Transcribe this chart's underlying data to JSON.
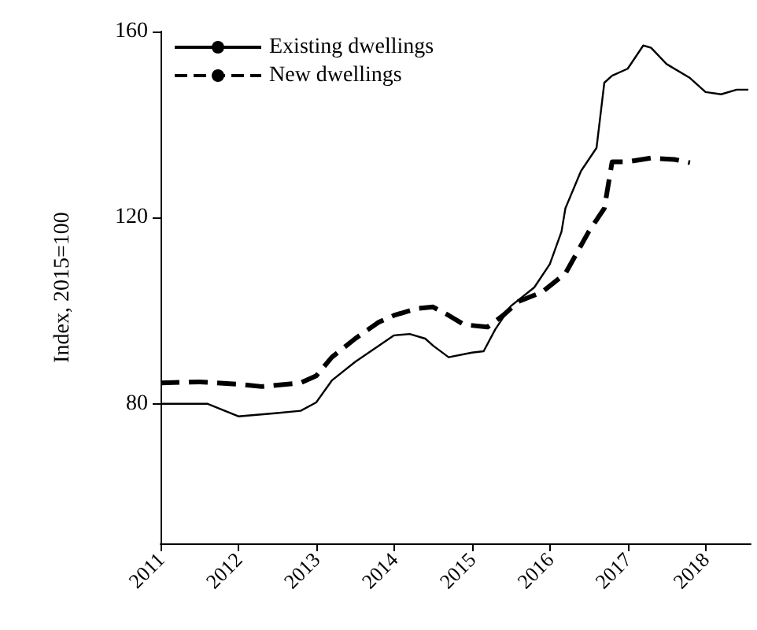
{
  "chart_data": {
    "type": "line",
    "ylabel": "Index, 2015=100",
    "xlim": [
      2011,
      2018.58
    ],
    "xticks": [
      2011,
      2012,
      2013,
      2014,
      2015,
      2016,
      2017,
      2018
    ],
    "ylim": [
      50,
      160
    ],
    "yticks": [
      80,
      120,
      160
    ],
    "grid": false,
    "legend": "top left",
    "marker": "none",
    "series": [
      {
        "name": "Existing dwellings",
        "color": "#000000",
        "line_style": "solid",
        "x": [
          2011,
          2011.6,
          2012,
          2012.5,
          2012.8,
          2013,
          2013.2,
          2013.5,
          2014,
          2014.2,
          2014.4,
          2014.5,
          2014.7,
          2015,
          2015.15,
          2015.3,
          2015.5,
          2015.8,
          2016,
          2016.15,
          2016.2,
          2016.4,
          2016.6,
          2016.65,
          2016.7,
          2016.8,
          2017,
          2017.2,
          2017.3,
          2017.5,
          2017.8,
          2018,
          2018.2,
          2018.4,
          2018.55
        ],
        "values": [
          80,
          80,
          77.3,
          78,
          78.5,
          80.3,
          85,
          89,
          94.7,
          95,
          94,
          92.5,
          90,
          91,
          91.3,
          96,
          101,
          105,
          110,
          117,
          122,
          130,
          135,
          142,
          149,
          150.5,
          152,
          157,
          156.5,
          153,
          150,
          147,
          146.5,
          147.5,
          147.5
        ]
      },
      {
        "name": "New dwellings",
        "color": "#000000",
        "line_style": "dashed",
        "x": [
          2011,
          2011.5,
          2012,
          2012.3,
          2012.8,
          2013,
          2013.2,
          2013.5,
          2013.8,
          2014,
          2014.3,
          2014.5,
          2014.7,
          2014.9,
          2015.2,
          2015.4,
          2015.6,
          2015.9,
          2016.2,
          2016.5,
          2016.7,
          2016.8,
          2017,
          2017.3,
          2017.6,
          2017.8
        ],
        "values": [
          84.5,
          84.7,
          84.2,
          83.7,
          84.5,
          86,
          90,
          94,
          97.5,
          99,
          100.5,
          100.8,
          99,
          97,
          96.5,
          99,
          102,
          104,
          108,
          117,
          122,
          132,
          132,
          132.8,
          132.5,
          131.8
        ]
      }
    ]
  }
}
